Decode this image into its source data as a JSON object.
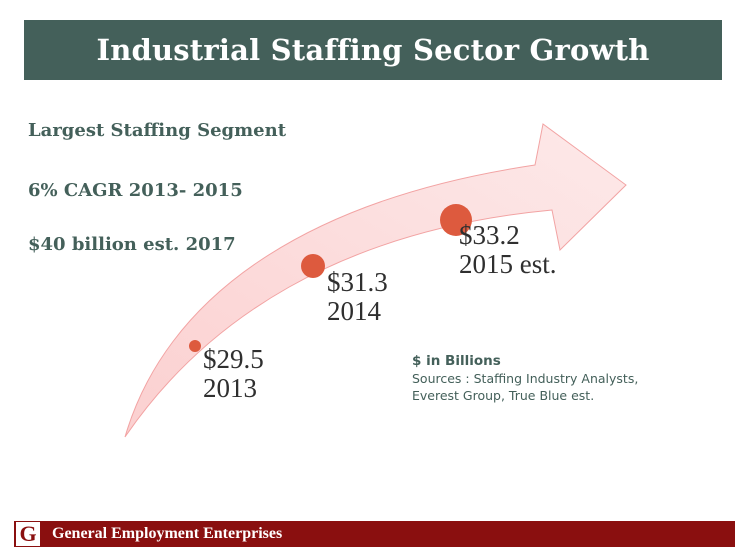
{
  "slide": {
    "title": "Industrial Staffing Sector Growth",
    "bullets": [
      "Largest Staffing Segment",
      "6% CAGR 2013- 2015",
      "$40 billion est. 2017"
    ]
  },
  "growth_points": [
    {
      "value": "$29.5",
      "year": "2013"
    },
    {
      "value": "$31.3",
      "year": "2014"
    },
    {
      "value": "$33.2",
      "year": "2015 est."
    }
  ],
  "notes": {
    "units": "$ in Billions",
    "sources_line1": "Sources : Staffing Industry Analysts,",
    "sources_line2": "Everest Group, True Blue est."
  },
  "footer": {
    "logo_letter": "G",
    "company": "General Employment Enterprises"
  },
  "colors": {
    "title_bg": "#44605a",
    "footer_bg": "#8a0f0f",
    "arrow_fill": "#fde2e2",
    "arrow_stroke": "#f2a3a3",
    "dot": "#dd5a3e"
  }
}
